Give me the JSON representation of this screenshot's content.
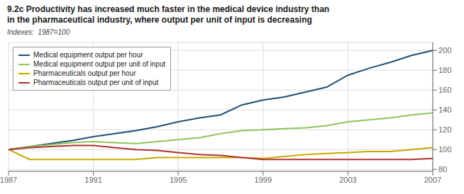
{
  "chart_data": {
    "type": "line",
    "title": "9.2c Productivity has increased much faster in the medical device industry than\nin the pharmaceutical industry, where output per unit of input is decreasing",
    "subtitle": "Indexes:  1987=100",
    "x": [
      1987,
      1988,
      1989,
      1990,
      1991,
      1992,
      1993,
      1994,
      1995,
      1996,
      1997,
      1998,
      1999,
      2000,
      2001,
      2002,
      2003,
      2004,
      2005,
      2006,
      2007
    ],
    "series": [
      {
        "name": "Medical equipment output per hour",
        "color": "#1d4f72",
        "values": [
          100,
          103,
          106,
          109,
          113,
          116,
          119,
          123,
          128,
          132,
          135,
          145,
          150,
          153,
          158,
          163,
          175,
          182,
          188,
          195,
          200
        ]
      },
      {
        "name": "Medical equipment output per unit of input",
        "color": "#8dc55a",
        "values": [
          100,
          103,
          105,
          107,
          108,
          107,
          106,
          108,
          110,
          112,
          116,
          119,
          120,
          121,
          122,
          124,
          128,
          130,
          132,
          135,
          137
        ]
      },
      {
        "name": "Pharmaceuticals output per hour",
        "color": "#c8a800",
        "values": [
          100,
          90,
          90,
          90,
          90,
          90,
          90,
          92,
          92,
          92,
          92,
          92,
          91,
          93,
          95,
          96,
          97,
          98,
          98,
          100,
          102
        ]
      },
      {
        "name": "Pharmaceuticals output per unit of input",
        "color": "#b03030",
        "values": [
          100,
          102,
          103,
          104,
          104,
          102,
          100,
          99,
          97,
          95,
          94,
          92,
          90,
          90,
          90,
          90,
          90,
          90,
          90,
          90,
          91
        ]
      }
    ],
    "xlim": [
      1987,
      2007
    ],
    "xticks": [
      1987,
      1991,
      1995,
      1999,
      2003,
      2007
    ],
    "ylim": [
      78,
      208
    ],
    "yticks": [
      80,
      100,
      120,
      140,
      160,
      180,
      200
    ],
    "grid": true,
    "legend": "upper left"
  }
}
